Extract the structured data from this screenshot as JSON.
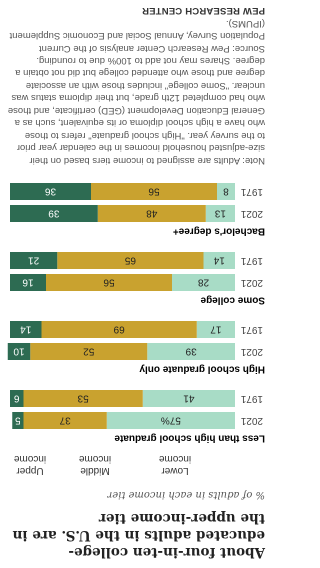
{
  "chart_data": {
    "type": "stacked-bar-horizontal",
    "title": "About four-in-ten college-educated adults in the U.S. are in the upper-income tier",
    "subtitle": "% of adults in each income tier",
    "groups": [
      "Less than high school graduate",
      "High school graduate only",
      "Some college",
      "Bachelor's degree+"
    ],
    "categories": [
      "2021",
      "1971",
      "2021",
      "1971",
      "2021",
      "1971",
      "2021",
      "1971"
    ],
    "xlim": [
      0,
      100
    ],
    "series": [
      {
        "name": "Lower income",
        "color": "#a8dcc6",
        "values": [
          57,
          41,
          39,
          17,
          28,
          14,
          13,
          8
        ],
        "value_labels": [
          "57%",
          "41",
          "39",
          "17",
          "28",
          "14",
          "13",
          "8"
        ]
      },
      {
        "name": "Middle income",
        "color": "#c9a22f",
        "values": [
          37,
          53,
          52,
          69,
          56,
          65,
          48,
          56
        ]
      },
      {
        "name": "Upper income",
        "color": "#2d6b52",
        "values": [
          5,
          6,
          10,
          14,
          16,
          21,
          39,
          36
        ]
      }
    ],
    "note": "Note: Adults are assigned to income tiers based on their size-adjusted household incomes in the calendar year prior to the survey year. \"High school graduate\" refers to those who have a high school diploma or its equivalent, such as a General Education Development (GED) certificate, and those who had completed 12th grade, but their diploma status was unclear. \"Some college\" includes those with an associate degree and those who attended college but did not obtain a degree. Shares may not add to 100% due to rounding.",
    "source": "Source: Pew Research Center analysis of the Current Population Survey, Annual Social and Economic Supplement (IPUMS).",
    "credit": "PEW RESEARCH CENTER"
  }
}
